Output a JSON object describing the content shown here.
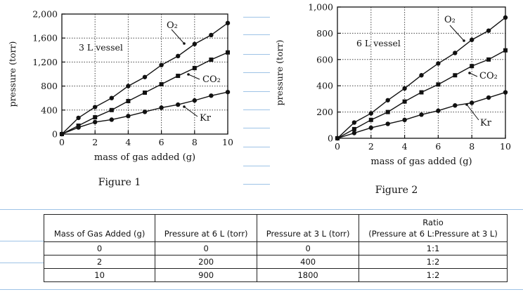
{
  "chart_data": [
    {
      "type": "line",
      "figure_label": "Figure 1",
      "annotation": "3 L vessel",
      "xlabel": "mass of gas added (g)",
      "ylabel": "pressure (torr)",
      "xlim": [
        0,
        10
      ],
      "ylim": [
        0,
        2000
      ],
      "xticks": [
        0,
        2,
        4,
        6,
        8,
        10
      ],
      "yticks": [
        0,
        400,
        800,
        1200,
        1600,
        2000
      ],
      "ytick_labels": [
        "0",
        "400",
        "800",
        "1,200",
        "1,600",
        "2,000"
      ],
      "grid": true,
      "series": [
        {
          "name": "O₂",
          "marker": "circle",
          "x": [
            0,
            1,
            2,
            3,
            4,
            5,
            6,
            7,
            8,
            9,
            10
          ],
          "y": [
            0,
            270,
            450,
            600,
            800,
            950,
            1150,
            1300,
            1500,
            1650,
            1850
          ]
        },
        {
          "name": "CO₂",
          "marker": "square",
          "x": [
            0,
            1,
            2,
            3,
            4,
            5,
            6,
            7,
            8,
            9,
            10
          ],
          "y": [
            0,
            140,
            280,
            400,
            550,
            690,
            830,
            970,
            1100,
            1240,
            1360
          ]
        },
        {
          "name": "Kr",
          "marker": "circle",
          "x": [
            0,
            1,
            2,
            3,
            4,
            5,
            6,
            7,
            8,
            9,
            10
          ],
          "y": [
            0,
            110,
            200,
            240,
            300,
            370,
            440,
            490,
            560,
            640,
            700
          ]
        }
      ]
    },
    {
      "type": "line",
      "figure_label": "Figure 2",
      "annotation": "6 L vessel",
      "xlabel": "mass of gas added (g)",
      "ylabel": "pressure (torr)",
      "xlim": [
        0,
        10
      ],
      "ylim": [
        0,
        1000
      ],
      "xticks": [
        0,
        2,
        4,
        6,
        8,
        10
      ],
      "yticks": [
        0,
        200,
        400,
        600,
        800,
        1000
      ],
      "ytick_labels": [
        "0",
        "200",
        "400",
        "600",
        "800",
        "1,000"
      ],
      "grid": true,
      "series": [
        {
          "name": "O₂",
          "marker": "circle",
          "x": [
            0,
            1,
            2,
            3,
            4,
            5,
            6,
            7,
            8,
            9,
            10
          ],
          "y": [
            0,
            120,
            190,
            290,
            380,
            480,
            570,
            650,
            750,
            820,
            920
          ]
        },
        {
          "name": "CO₂",
          "marker": "square",
          "x": [
            0,
            1,
            2,
            3,
            4,
            5,
            6,
            7,
            8,
            9,
            10
          ],
          "y": [
            0,
            70,
            140,
            200,
            280,
            350,
            410,
            480,
            550,
            600,
            670
          ]
        },
        {
          "name": "Kr",
          "marker": "circle",
          "x": [
            0,
            1,
            2,
            3,
            4,
            5,
            6,
            7,
            8,
            9,
            10
          ],
          "y": [
            0,
            40,
            80,
            110,
            140,
            180,
            210,
            250,
            270,
            310,
            350
          ]
        }
      ]
    }
  ],
  "table": {
    "headers": [
      [
        "Mass of Gas Added (g)"
      ],
      [
        "Pressure at 6 L (torr)"
      ],
      [
        "Pressure at 3 L (torr)"
      ],
      [
        "Ratio",
        "(Pressure at 6 L:Pressure at 3 L)"
      ]
    ],
    "rows": [
      [
        "0",
        "0",
        "0",
        "1:1"
      ],
      [
        "2",
        "200",
        "400",
        "1:2"
      ],
      [
        "10",
        "900",
        "1800",
        "1:2"
      ]
    ]
  }
}
